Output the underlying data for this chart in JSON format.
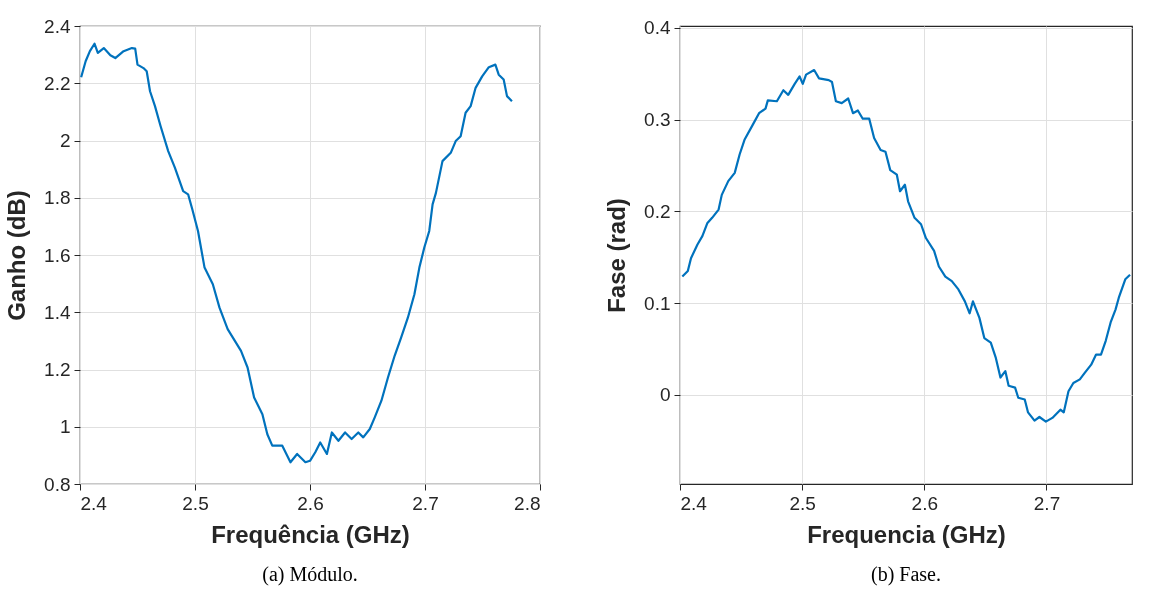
{
  "chart_data": [
    {
      "type": "line",
      "xlabel": "Frequência (GHz)",
      "ylabel": "Ganho (dB)",
      "annotations": [
        "(a) Módulo."
      ],
      "xlim": [
        2.4,
        2.8
      ],
      "xticks": [
        2.4,
        2.5,
        2.6,
        2.7,
        2.8
      ],
      "ylim": [
        0.8,
        2.4
      ],
      "yticks": [
        0.8,
        1,
        1.2,
        1.4,
        1.6,
        1.8,
        2,
        2.2,
        2.4
      ],
      "grid": true,
      "marker": "none",
      "line_style": "solid",
      "series": [
        {
          "color": "#0072bd",
          "x": [
            2.401,
            2.4049,
            2.4086,
            2.4126,
            2.4155,
            2.4207,
            2.4264,
            2.4307,
            2.4379,
            2.4451,
            2.448,
            2.45,
            2.4552,
            2.458,
            2.4609,
            2.4652,
            2.4701,
            2.4767,
            2.4825,
            2.4897,
            2.494,
            2.4977,
            2.5026,
            2.5083,
            2.5155,
            2.5213,
            2.5284,
            2.5356,
            2.54,
            2.5457,
            2.5514,
            2.5586,
            2.5629,
            2.5672,
            2.5759,
            2.583,
            2.5888,
            2.596,
            2.6,
            2.6046,
            2.6089,
            2.6147,
            2.619,
            2.6247,
            2.6305,
            2.6362,
            2.642,
            2.6463,
            2.652,
            2.6563,
            2.6621,
            2.6678,
            2.6736,
            2.6793,
            2.6851,
            2.6908,
            2.6951,
            2.6994,
            2.7037,
            2.7066,
            2.7095,
            2.7152,
            2.7224,
            2.7267,
            2.731,
            2.7353,
            2.7397,
            2.744,
            2.7497,
            2.7555,
            2.7612,
            2.7641,
            2.7684,
            2.7713,
            2.7756
          ],
          "values": [
            2.221,
            2.277,
            2.312,
            2.338,
            2.306,
            2.323,
            2.298,
            2.288,
            2.312,
            2.323,
            2.321,
            2.265,
            2.253,
            2.242,
            2.172,
            2.12,
            2.05,
            1.963,
            1.905,
            1.823,
            1.812,
            1.759,
            1.684,
            1.556,
            1.498,
            1.416,
            1.341,
            1.294,
            1.265,
            1.207,
            1.102,
            1.044,
            0.974,
            0.934,
            0.934,
            0.876,
            0.905,
            0.876,
            0.881,
            0.911,
            0.945,
            0.905,
            0.98,
            0.951,
            0.98,
            0.957,
            0.98,
            0.963,
            0.992,
            1.033,
            1.091,
            1.172,
            1.248,
            1.312,
            1.381,
            1.463,
            1.556,
            1.626,
            1.684,
            1.777,
            1.817,
            1.928,
            1.957,
            1.998,
            2.015,
            2.097,
            2.12,
            2.184,
            2.224,
            2.256,
            2.265,
            2.23,
            2.213,
            2.155,
            2.137
          ]
        }
      ]
    },
    {
      "type": "line",
      "xlabel": "Frequencia (GHz)",
      "ylabel": "Fase (rad)",
      "annotations": [
        "(b) Fase."
      ],
      "xlim": [
        2.4,
        2.77
      ],
      "xticks": [
        2.4,
        2.5,
        2.6,
        2.7
      ],
      "ylim": [
        -0.097,
        0.402
      ],
      "yticks": [
        0,
        0.1,
        0.2,
        0.3,
        0.4
      ],
      "grid": true,
      "marker": "none",
      "line_style": "solid",
      "series": [
        {
          "color": "#0072bd",
          "x": [
            2.4019,
            2.4064,
            2.409,
            2.4143,
            2.4183,
            2.4223,
            2.4263,
            2.4316,
            2.4342,
            2.4395,
            2.4448,
            2.4488,
            2.4528,
            2.4594,
            2.4647,
            2.47,
            2.4719,
            2.4793,
            2.4846,
            2.4886,
            2.4939,
            2.4979,
            2.5005,
            2.5032,
            2.5098,
            2.5138,
            2.5218,
            2.5244,
            2.5276,
            2.5324,
            2.5377,
            2.5416,
            2.5456,
            2.5496,
            2.5549,
            2.5589,
            2.5642,
            2.5682,
            2.5721,
            2.5775,
            2.5801,
            2.5841,
            2.5867,
            2.592,
            2.5973,
            2.6013,
            2.608,
            2.6119,
            2.6172,
            2.6225,
            2.6279,
            2.6332,
            2.6371,
            2.6398,
            2.6451,
            2.6491,
            2.6544,
            2.6584,
            2.6623,
            2.6663,
            2.669,
            2.6743,
            2.6769,
            2.6822,
            2.6849,
            2.6902,
            2.6942,
            2.6995,
            2.7048,
            2.7114,
            2.7141,
            2.718,
            2.722,
            2.7273,
            2.7313,
            2.7366,
            2.7406,
            2.7446,
            2.7485,
            2.7525,
            2.7565,
            2.7592,
            2.7645,
            2.7684
          ],
          "values": [
            0.129,
            0.135,
            0.149,
            0.164,
            0.173,
            0.187,
            0.193,
            0.202,
            0.218,
            0.233,
            0.242,
            0.262,
            0.278,
            0.294,
            0.307,
            0.312,
            0.321,
            0.32,
            0.332,
            0.327,
            0.339,
            0.347,
            0.339,
            0.349,
            0.354,
            0.345,
            0.343,
            0.341,
            0.32,
            0.318,
            0.323,
            0.307,
            0.31,
            0.301,
            0.301,
            0.28,
            0.267,
            0.265,
            0.245,
            0.24,
            0.222,
            0.229,
            0.211,
            0.193,
            0.186,
            0.171,
            0.157,
            0.14,
            0.129,
            0.124,
            0.115,
            0.102,
            0.089,
            0.102,
            0.084,
            0.062,
            0.057,
            0.041,
            0.019,
            0.026,
            0.01,
            0.008,
            -0.003,
            -0.005,
            -0.019,
            -0.028,
            -0.024,
            -0.029,
            -0.025,
            -0.016,
            -0.019,
            0.004,
            0.013,
            0.017,
            0.024,
            0.033,
            0.044,
            0.044,
            0.059,
            0.079,
            0.093,
            0.106,
            0.126,
            0.131
          ]
        }
      ]
    }
  ]
}
